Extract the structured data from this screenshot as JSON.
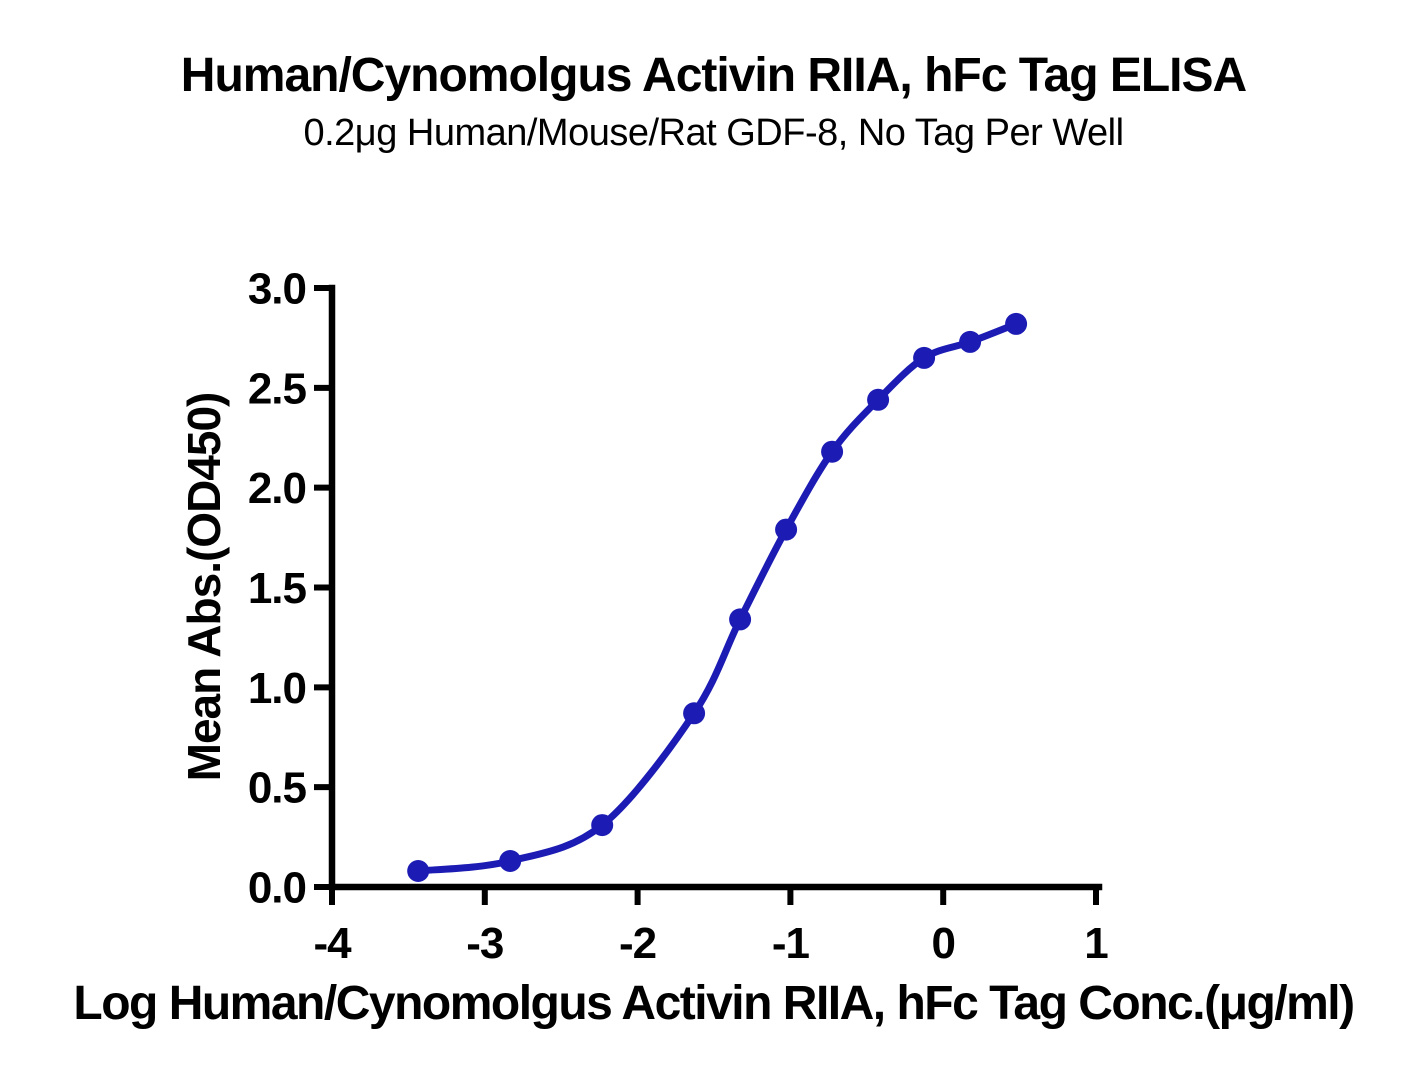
{
  "chart_data": {
    "type": "line",
    "title": "Human/Cynomolgus Activin RIIA, hFc Tag ELISA",
    "subtitle": "0.2μg Human/Mouse/Rat GDF-8, No Tag Per Well",
    "xlabel": "Log Human/Cynomolgus Activin RIIA, hFc Tag Conc.(μg/ml)",
    "ylabel": "Mean Abs.(OD450)",
    "xlim": [
      -4,
      1
    ],
    "ylim": [
      0,
      3
    ],
    "xticks": [
      -4,
      -3,
      -2,
      -1,
      0,
      1
    ],
    "xtick_labels": [
      "-4",
      "-3",
      "-2",
      "-1",
      "0",
      "1"
    ],
    "yticks": [
      0,
      0.5,
      1,
      1.5,
      2,
      2.5,
      3
    ],
    "ytick_labels": [
      "0.0",
      "0.5",
      "1.0",
      "1.5",
      "2.0",
      "2.5",
      "3.0"
    ],
    "grid": false,
    "legend_position": "none",
    "series": [
      {
        "name": "Human/Cynomolgus Activin RIIA, hFc Tag",
        "color": "#1c1cb4",
        "marker": "circle",
        "x": [
          -3.436,
          -2.834,
          -2.232,
          -1.63,
          -1.329,
          -1.028,
          -0.727,
          -0.426,
          -0.125,
          0.176,
          0.477
        ],
        "y": [
          0.08,
          0.13,
          0.31,
          0.87,
          1.34,
          1.79,
          2.18,
          2.44,
          2.65,
          2.73,
          2.82
        ]
      }
    ]
  },
  "colors": {
    "curve": "#1c1cb4",
    "axis": "#000000",
    "text": "#000000",
    "background": "#ffffff"
  }
}
